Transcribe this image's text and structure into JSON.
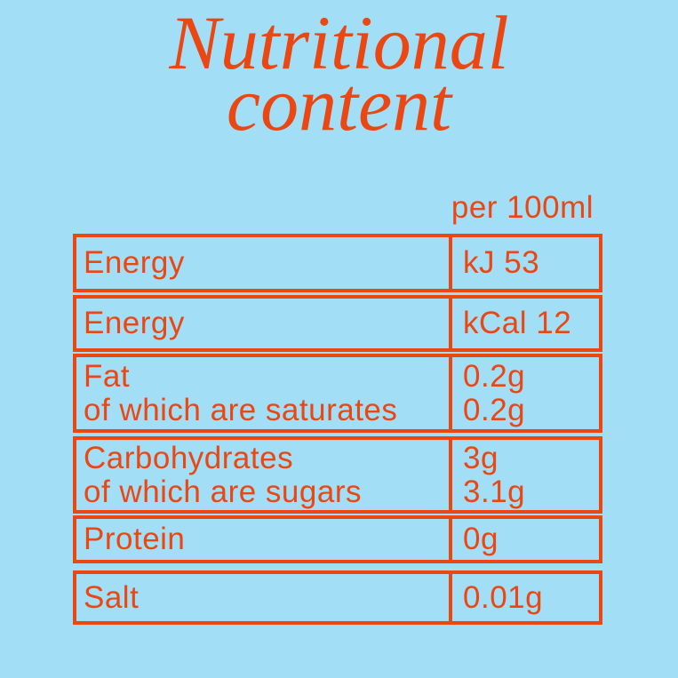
{
  "title": {
    "line1": "Nutritional",
    "line2": "content"
  },
  "table": {
    "unit_header": "per 100ml",
    "rows": [
      {
        "label_lines": [
          "Energy"
        ],
        "value_lines": [
          "kJ 53"
        ]
      },
      {
        "label_lines": [
          "Energy"
        ],
        "value_lines": [
          "kCal 12"
        ]
      },
      {
        "label_lines": [
          "Fat",
          "of which are saturates"
        ],
        "value_lines": [
          "0.2g",
          "0.2g"
        ]
      },
      {
        "label_lines": [
          "Carbohydrates",
          "of which are sugars"
        ],
        "value_lines": [
          "3g",
          "3.1g"
        ]
      },
      {
        "label_lines": [
          "Protein"
        ],
        "value_lines": [
          "0g"
        ]
      },
      {
        "label_lines": [
          "Salt"
        ],
        "value_lines": [
          "0.01g"
        ]
      }
    ]
  },
  "colors": {
    "accent": "#EB4713",
    "background": "#A3DEF7"
  }
}
